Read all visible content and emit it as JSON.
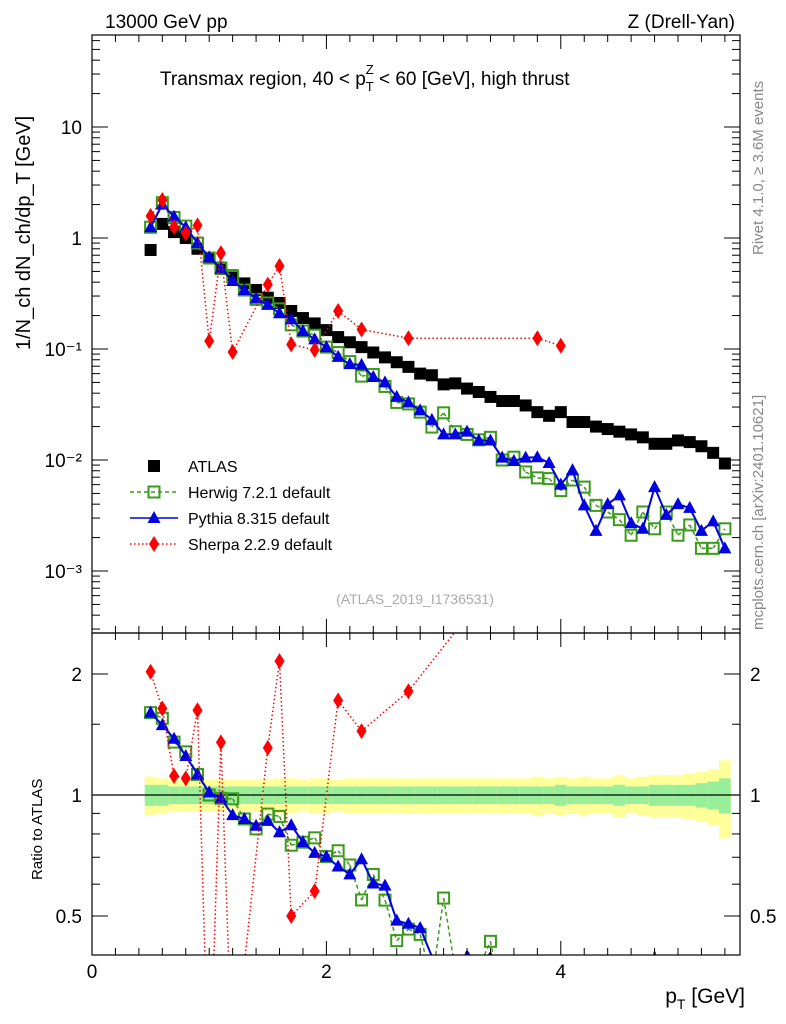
{
  "header": {
    "left": "13000 GeV pp",
    "right": "Z (Drell-Yan)"
  },
  "side": {
    "rivet": "Rivet 4.1.0, ≥ 3.6M events",
    "mcplots": "mcplots.cern.ch [arXiv:2401.10621]"
  },
  "chart_data": {
    "type": "scatter",
    "title": "Transmax region, 40 < p_T^Z < 60 [GeV], high thrust",
    "title_parts": {
      "a": "Transmax region, 40 < p",
      "sub": "T",
      "sup": "Z",
      "b": " < 60 [GeV], high thrust"
    },
    "analysis": "(ATLAS_2019_I1736531)",
    "ylabel": "1/N_ch dN_ch/dp_T [GeV]",
    "ratio_ylabel": "Ratio to ATLAS",
    "xlabel": "p_T [GeV]",
    "xlabel_parts": {
      "p": "p",
      "sub": "T",
      "unit": " [GeV]"
    },
    "xlim": [
      0,
      5.54
    ],
    "ylim": [
      0.00028,
      67
    ],
    "yscale": "log",
    "ratio_ylim": [
      0.4,
      2.5
    ],
    "ratio_yscale": "log",
    "xticks": [
      "0",
      "2",
      "4"
    ],
    "yticks": [
      "10",
      "1",
      "10⁻¹",
      "10⁻²",
      "10⁻³"
    ],
    "ratio_yticks": [
      "2",
      "1",
      "0.5"
    ],
    "legend_position": "bottom-left",
    "x": [
      0.5,
      0.6,
      0.7,
      0.8,
      0.9,
      1.0,
      1.1,
      1.2,
      1.3,
      1.4,
      1.5,
      1.6,
      1.7,
      1.8,
      1.9,
      2.0,
      2.1,
      2.2,
      2.3,
      2.4,
      2.5,
      2.6,
      2.7,
      2.8,
      2.9,
      3.0,
      3.1,
      3.2,
      3.3,
      3.4,
      3.5,
      3.6,
      3.7,
      3.8,
      3.9,
      4.0,
      4.1,
      4.2,
      4.3,
      4.4,
      4.5,
      4.6,
      4.7,
      4.8,
      4.9,
      5.0,
      5.1,
      5.2,
      5.3,
      5.4
    ],
    "series": [
      {
        "name": "ATLAS",
        "color": "#000000",
        "marker": "square",
        "values": [
          0.78,
          1.34,
          1.13,
          1.0,
          0.8,
          0.66,
          0.54,
          0.46,
          0.39,
          0.34,
          0.29,
          0.26,
          0.22,
          0.19,
          0.17,
          0.148,
          0.128,
          0.115,
          0.104,
          0.093,
          0.084,
          0.076,
          0.069,
          0.06,
          0.058,
          0.048,
          0.049,
          0.044,
          0.041,
          0.037,
          0.034,
          0.034,
          0.031,
          0.027,
          0.025,
          0.027,
          0.022,
          0.022,
          0.02,
          0.019,
          0.018,
          0.017,
          0.016,
          0.014,
          0.014,
          0.015,
          0.0145,
          0.0133,
          0.0116,
          0.0093
        ]
      },
      {
        "name": "Herwig 7.2.1 default",
        "color": "#3a9a1a",
        "marker": "open-square",
        "dash": "4,3",
        "values": [
          1.25,
          2.08,
          1.53,
          1.28,
          0.9,
          0.66,
          0.53,
          0.45,
          0.34,
          0.28,
          0.26,
          0.23,
          0.165,
          0.145,
          0.133,
          0.104,
          0.093,
          0.077,
          0.057,
          0.059,
          0.046,
          0.033,
          0.032,
          0.027,
          0.0198,
          0.0266,
          0.018,
          0.017,
          0.0152,
          0.016,
          0.01,
          0.0106,
          0.0078,
          0.0069,
          0.0068,
          0.0053,
          0.0066,
          0.0057,
          0.0039,
          0.0034,
          0.0029,
          0.0021,
          0.0034,
          0.0024,
          0.0034,
          0.0021,
          0.0026,
          0.0016,
          0.0016,
          0.0024
        ]
      },
      {
        "name": "Pythia 8.315 default",
        "color": "#0000e0",
        "marker": "triangle",
        "dash": "",
        "values": [
          1.25,
          2.0,
          1.56,
          1.25,
          0.9,
          0.67,
          0.53,
          0.41,
          0.34,
          0.285,
          0.25,
          0.21,
          0.185,
          0.145,
          0.122,
          0.104,
          0.085,
          0.073,
          0.072,
          0.056,
          0.05,
          0.037,
          0.033,
          0.028,
          0.023,
          0.017,
          0.017,
          0.018,
          0.015,
          0.015,
          0.0105,
          0.0098,
          0.0105,
          0.0106,
          0.0094,
          0.006,
          0.0081,
          0.0039,
          0.0023,
          0.004,
          0.0048,
          0.0027,
          0.0024,
          0.0057,
          0.0032,
          0.004,
          0.0037,
          0.0023,
          0.0028,
          0.0016
        ]
      },
      {
        "name": "Sherpa 2.2.9 default",
        "color": "#ff0000",
        "marker": "diamond",
        "dash": "1.5,2.5",
        "values": [
          1.58,
          2.2,
          1.26,
          1.1,
          1.3,
          0.118,
          0.73,
          0.094,
          null,
          null,
          0.38,
          0.56,
          0.11,
          null,
          0.098,
          null,
          0.22,
          null,
          0.15,
          null,
          null,
          null,
          0.125,
          null,
          null,
          null,
          null,
          null,
          null,
          null,
          null,
          null,
          null,
          0.125,
          null,
          0.107,
          null,
          null,
          null,
          null,
          null,
          null,
          null,
          null,
          null,
          null,
          null,
          null,
          null,
          null
        ]
      }
    ],
    "band_inner": [
      0.06,
      0.06,
      0.05,
      0.05,
      0.05,
      0.05,
      0.05,
      0.05,
      0.05,
      0.05,
      0.05,
      0.05,
      0.05,
      0.05,
      0.05,
      0.05,
      0.05,
      0.05,
      0.05,
      0.05,
      0.05,
      0.05,
      0.05,
      0.05,
      0.05,
      0.05,
      0.05,
      0.05,
      0.05,
      0.05,
      0.05,
      0.05,
      0.05,
      0.05,
      0.05,
      0.06,
      0.05,
      0.05,
      0.05,
      0.05,
      0.06,
      0.05,
      0.05,
      0.06,
      0.06,
      0.06,
      0.06,
      0.07,
      0.08,
      0.1
    ],
    "band_outer": [
      0.11,
      0.1,
      0.09,
      0.09,
      0.09,
      0.09,
      0.09,
      0.09,
      0.09,
      0.09,
      0.09,
      0.1,
      0.1,
      0.09,
      0.1,
      0.1,
      0.09,
      0.1,
      0.1,
      0.1,
      0.1,
      0.1,
      0.1,
      0.1,
      0.1,
      0.1,
      0.1,
      0.1,
      0.1,
      0.1,
      0.1,
      0.1,
      0.1,
      0.11,
      0.1,
      0.11,
      0.1,
      0.11,
      0.1,
      0.1,
      0.12,
      0.1,
      0.11,
      0.12,
      0.12,
      0.12,
      0.13,
      0.14,
      0.16,
      0.22
    ]
  }
}
